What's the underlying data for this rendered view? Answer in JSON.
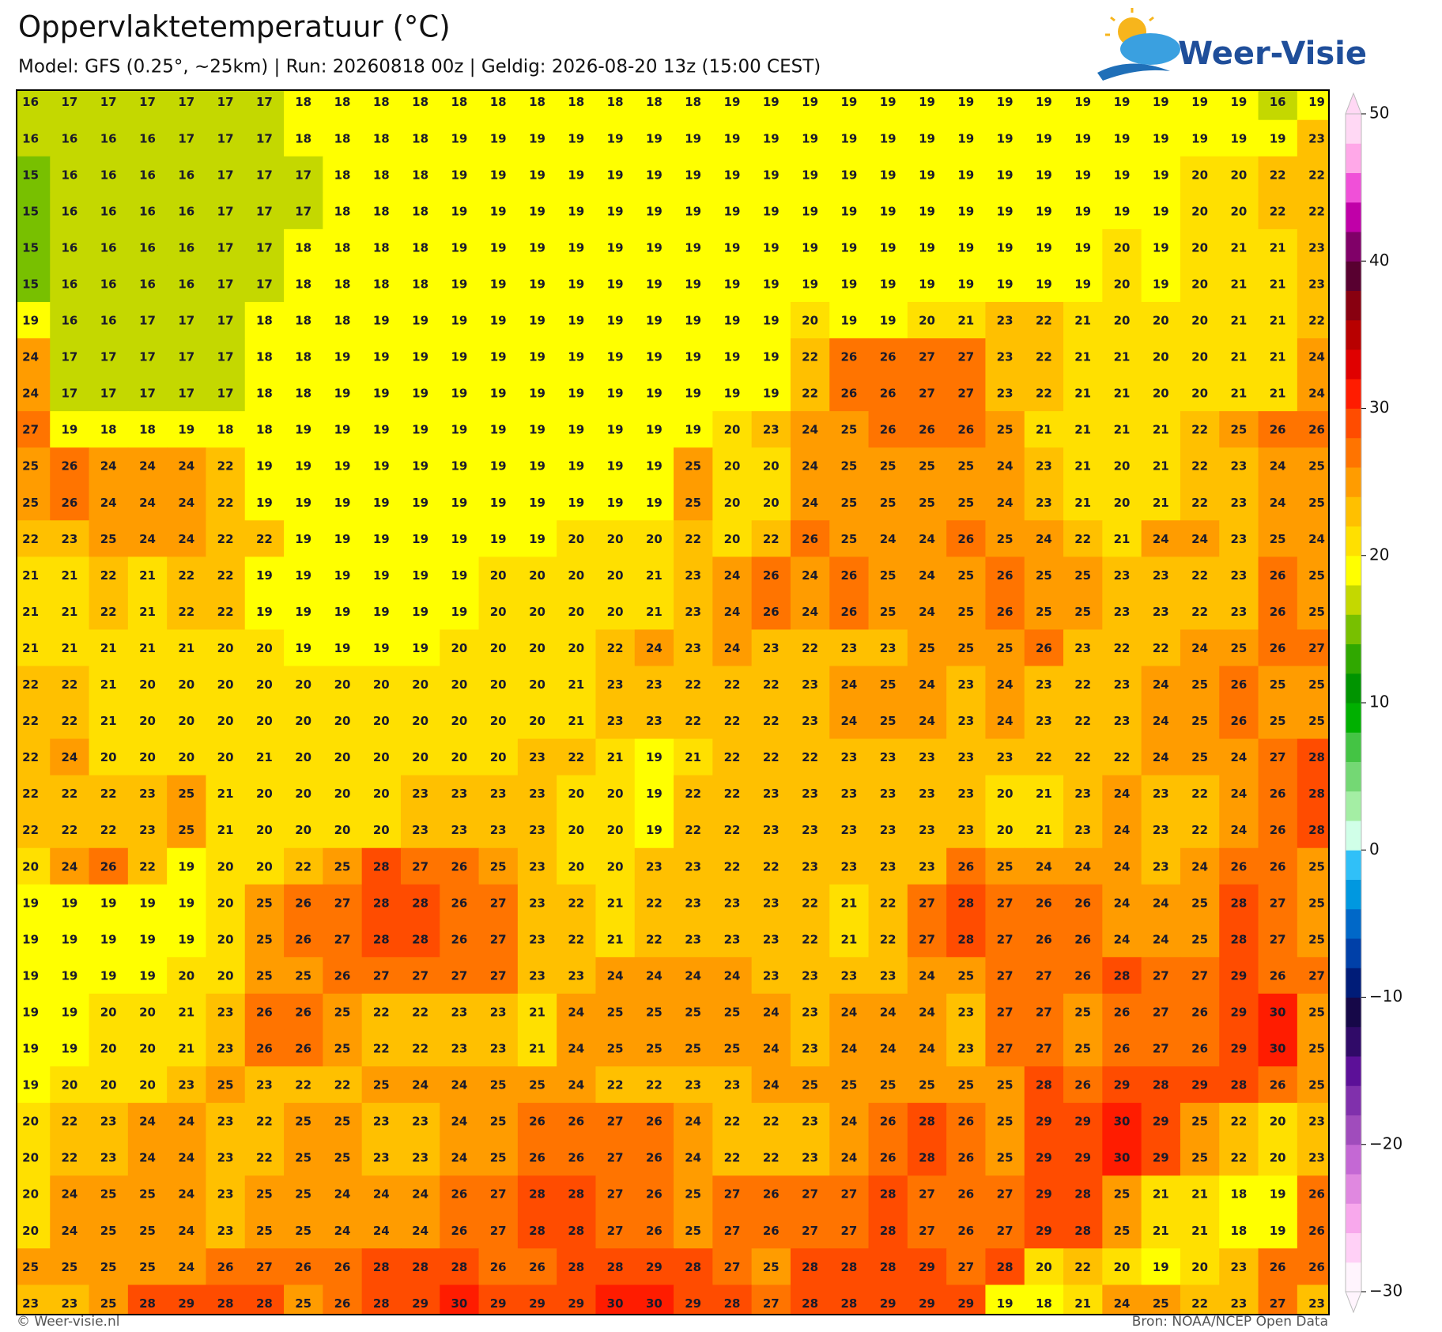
{
  "header": {
    "title": "Oppervlaktetemperatuur (°C)",
    "subtitle": "Model: GFS (0.25°, ~25km)  |  Run: 20260818 00z  |  Geldig: 2026-08-20 13z (15:00 CEST)",
    "logo": "Weer-Visie"
  },
  "map": {
    "values": [
      [
        16,
        17,
        17,
        17,
        17,
        17,
        17,
        18,
        18,
        18,
        18,
        18,
        18,
        18,
        18,
        18,
        18,
        18,
        19,
        19,
        19,
        19,
        19,
        19,
        19,
        19,
        19,
        19,
        19,
        19,
        19,
        19,
        16,
        19
      ],
      [
        16,
        16,
        16,
        16,
        17,
        17,
        17,
        18,
        18,
        18,
        18,
        19,
        19,
        19,
        19,
        19,
        19,
        19,
        19,
        19,
        19,
        19,
        19,
        19,
        19,
        19,
        19,
        19,
        19,
        19,
        19,
        19,
        19,
        23
      ],
      [
        15,
        16,
        16,
        16,
        16,
        17,
        17,
        17,
        18,
        18,
        18,
        19,
        19,
        19,
        19,
        19,
        19,
        19,
        19,
        19,
        19,
        19,
        19,
        19,
        19,
        19,
        19,
        19,
        19,
        19,
        20,
        20,
        22,
        22
      ],
      [
        15,
        16,
        16,
        16,
        16,
        17,
        17,
        17,
        18,
        18,
        18,
        19,
        19,
        19,
        19,
        19,
        19,
        19,
        19,
        19,
        19,
        19,
        19,
        19,
        19,
        19,
        19,
        19,
        19,
        19,
        20,
        20,
        22,
        22
      ],
      [
        15,
        16,
        16,
        16,
        16,
        17,
        17,
        18,
        18,
        18,
        18,
        19,
        19,
        19,
        19,
        19,
        19,
        19,
        19,
        19,
        19,
        19,
        19,
        19,
        19,
        19,
        19,
        19,
        20,
        19,
        20,
        21,
        21,
        23
      ],
      [
        15,
        16,
        16,
        16,
        16,
        17,
        17,
        18,
        18,
        18,
        18,
        19,
        19,
        19,
        19,
        19,
        19,
        19,
        19,
        19,
        19,
        19,
        19,
        19,
        19,
        19,
        19,
        19,
        20,
        19,
        20,
        21,
        21,
        23
      ],
      [
        19,
        16,
        16,
        17,
        17,
        17,
        18,
        18,
        18,
        19,
        19,
        19,
        19,
        19,
        19,
        19,
        19,
        19,
        19,
        19,
        20,
        19,
        19,
        20,
        21,
        23,
        22,
        21,
        20,
        20,
        20,
        21,
        21,
        22
      ],
      [
        24,
        17,
        17,
        17,
        17,
        17,
        18,
        18,
        19,
        19,
        19,
        19,
        19,
        19,
        19,
        19,
        19,
        19,
        19,
        19,
        22,
        26,
        26,
        27,
        27,
        23,
        22,
        21,
        21,
        20,
        20,
        21,
        21,
        24
      ],
      [
        24,
        17,
        17,
        17,
        17,
        17,
        18,
        18,
        19,
        19,
        19,
        19,
        19,
        19,
        19,
        19,
        19,
        19,
        19,
        19,
        22,
        26,
        26,
        27,
        27,
        23,
        22,
        21,
        21,
        20,
        20,
        21,
        21,
        24
      ],
      [
        27,
        19,
        18,
        18,
        19,
        18,
        18,
        19,
        19,
        19,
        19,
        19,
        19,
        19,
        19,
        19,
        19,
        19,
        20,
        23,
        24,
        25,
        26,
        26,
        26,
        25,
        21,
        21,
        21,
        21,
        22,
        25,
        26,
        26
      ],
      [
        25,
        26,
        24,
        24,
        24,
        22,
        19,
        19,
        19,
        19,
        19,
        19,
        19,
        19,
        19,
        19,
        19,
        25,
        20,
        20,
        24,
        25,
        25,
        25,
        25,
        24,
        23,
        21,
        20,
        21,
        22,
        23,
        24,
        25
      ],
      [
        25,
        26,
        24,
        24,
        24,
        22,
        19,
        19,
        19,
        19,
        19,
        19,
        19,
        19,
        19,
        19,
        19,
        25,
        20,
        20,
        24,
        25,
        25,
        25,
        25,
        24,
        23,
        21,
        20,
        21,
        22,
        23,
        24,
        25
      ],
      [
        22,
        23,
        25,
        24,
        24,
        22,
        22,
        19,
        19,
        19,
        19,
        19,
        19,
        19,
        20,
        20,
        20,
        22,
        20,
        22,
        26,
        25,
        24,
        24,
        26,
        25,
        24,
        22,
        21,
        24,
        24,
        23,
        25,
        24
      ],
      [
        21,
        21,
        22,
        21,
        22,
        22,
        19,
        19,
        19,
        19,
        19,
        19,
        20,
        20,
        20,
        20,
        21,
        23,
        24,
        26,
        24,
        26,
        25,
        24,
        25,
        26,
        25,
        25,
        23,
        23,
        22,
        23,
        26,
        25
      ],
      [
        21,
        21,
        22,
        21,
        22,
        22,
        19,
        19,
        19,
        19,
        19,
        19,
        20,
        20,
        20,
        20,
        21,
        23,
        24,
        26,
        24,
        26,
        25,
        24,
        25,
        26,
        25,
        25,
        23,
        23,
        22,
        23,
        26,
        25
      ],
      [
        21,
        21,
        21,
        21,
        21,
        20,
        20,
        19,
        19,
        19,
        19,
        20,
        20,
        20,
        20,
        22,
        24,
        23,
        24,
        23,
        22,
        23,
        23,
        25,
        25,
        25,
        26,
        23,
        22,
        22,
        24,
        25,
        26,
        27
      ],
      [
        22,
        22,
        21,
        20,
        20,
        20,
        20,
        20,
        20,
        20,
        20,
        20,
        20,
        20,
        21,
        23,
        23,
        22,
        22,
        22,
        23,
        24,
        25,
        24,
        23,
        24,
        23,
        22,
        23,
        24,
        25,
        26,
        25,
        25
      ],
      [
        22,
        22,
        21,
        20,
        20,
        20,
        20,
        20,
        20,
        20,
        20,
        20,
        20,
        20,
        21,
        23,
        23,
        22,
        22,
        22,
        23,
        24,
        25,
        24,
        23,
        24,
        23,
        22,
        23,
        24,
        25,
        26,
        25,
        25
      ],
      [
        22,
        24,
        20,
        20,
        20,
        20,
        21,
        20,
        20,
        20,
        20,
        20,
        20,
        23,
        22,
        21,
        19,
        21,
        22,
        22,
        22,
        23,
        23,
        23,
        23,
        23,
        22,
        22,
        22,
        24,
        25,
        24,
        27,
        28
      ],
      [
        22,
        22,
        22,
        23,
        25,
        21,
        20,
        20,
        20,
        20,
        23,
        23,
        23,
        23,
        20,
        20,
        19,
        22,
        22,
        23,
        23,
        23,
        23,
        23,
        23,
        20,
        21,
        23,
        24,
        23,
        22,
        24,
        26,
        28
      ],
      [
        22,
        22,
        22,
        23,
        25,
        21,
        20,
        20,
        20,
        20,
        23,
        23,
        23,
        23,
        20,
        20,
        19,
        22,
        22,
        23,
        23,
        23,
        23,
        23,
        23,
        20,
        21,
        23,
        24,
        23,
        22,
        24,
        26,
        28
      ],
      [
        20,
        24,
        26,
        22,
        19,
        20,
        20,
        22,
        25,
        28,
        27,
        26,
        25,
        23,
        20,
        20,
        23,
        23,
        22,
        22,
        23,
        23,
        23,
        23,
        26,
        25,
        24,
        24,
        24,
        23,
        24,
        26,
        26,
        25
      ],
      [
        19,
        19,
        19,
        19,
        19,
        20,
        25,
        26,
        27,
        28,
        28,
        26,
        27,
        23,
        22,
        21,
        22,
        23,
        23,
        23,
        22,
        21,
        22,
        27,
        28,
        27,
        26,
        26,
        24,
        24,
        25,
        28,
        27,
        25
      ],
      [
        19,
        19,
        19,
        19,
        19,
        20,
        25,
        26,
        27,
        28,
        28,
        26,
        27,
        23,
        22,
        21,
        22,
        23,
        23,
        23,
        22,
        21,
        22,
        27,
        28,
        27,
        26,
        26,
        24,
        24,
        25,
        28,
        27,
        25
      ],
      [
        19,
        19,
        19,
        19,
        20,
        20,
        25,
        25,
        26,
        27,
        27,
        27,
        27,
        23,
        23,
        24,
        24,
        24,
        24,
        23,
        23,
        23,
        23,
        24,
        25,
        27,
        27,
        26,
        28,
        27,
        27,
        29,
        26,
        27
      ],
      [
        19,
        19,
        20,
        20,
        21,
        23,
        26,
        26,
        25,
        22,
        22,
        23,
        23,
        21,
        24,
        25,
        25,
        25,
        25,
        24,
        23,
        24,
        24,
        24,
        23,
        27,
        27,
        25,
        26,
        27,
        26,
        29,
        30,
        25
      ],
      [
        19,
        19,
        20,
        20,
        21,
        23,
        26,
        26,
        25,
        22,
        22,
        23,
        23,
        21,
        24,
        25,
        25,
        25,
        25,
        24,
        23,
        24,
        24,
        24,
        23,
        27,
        27,
        25,
        26,
        27,
        26,
        29,
        30,
        25
      ],
      [
        19,
        20,
        20,
        20,
        23,
        25,
        23,
        22,
        22,
        25,
        24,
        24,
        25,
        25,
        24,
        22,
        22,
        23,
        23,
        24,
        25,
        25,
        25,
        25,
        25,
        25,
        28,
        26,
        29,
        28,
        29,
        28,
        26,
        25
      ],
      [
        20,
        22,
        23,
        24,
        24,
        23,
        22,
        25,
        25,
        23,
        23,
        24,
        25,
        26,
        26,
        27,
        26,
        24,
        22,
        22,
        23,
        24,
        26,
        28,
        26,
        25,
        29,
        29,
        30,
        29,
        25,
        22,
        20,
        23
      ],
      [
        20,
        22,
        23,
        24,
        24,
        23,
        22,
        25,
        25,
        23,
        23,
        24,
        25,
        26,
        26,
        27,
        26,
        24,
        22,
        22,
        23,
        24,
        26,
        28,
        26,
        25,
        29,
        29,
        30,
        29,
        25,
        22,
        20,
        23
      ],
      [
        20,
        24,
        25,
        25,
        24,
        23,
        25,
        25,
        24,
        24,
        24,
        26,
        27,
        28,
        28,
        27,
        26,
        25,
        27,
        26,
        27,
        27,
        28,
        27,
        26,
        27,
        29,
        28,
        25,
        21,
        21,
        18,
        19,
        26
      ],
      [
        20,
        24,
        25,
        25,
        24,
        23,
        25,
        25,
        24,
        24,
        24,
        26,
        27,
        28,
        28,
        27,
        26,
        25,
        27,
        26,
        27,
        27,
        28,
        27,
        26,
        27,
        29,
        28,
        25,
        21,
        21,
        18,
        19,
        26
      ],
      [
        25,
        25,
        25,
        25,
        24,
        26,
        27,
        26,
        26,
        28,
        28,
        28,
        26,
        26,
        28,
        28,
        29,
        28,
        27,
        25,
        28,
        28,
        28,
        29,
        27,
        28,
        20,
        22,
        20,
        19,
        20,
        23,
        26,
        26
      ],
      [
        23,
        23,
        25,
        28,
        29,
        28,
        28,
        25,
        26,
        28,
        29,
        30,
        29,
        29,
        29,
        30,
        30,
        29,
        28,
        27,
        28,
        28,
        29,
        29,
        29,
        19,
        18,
        21,
        24,
        25,
        22,
        23,
        27,
        23
      ]
    ],
    "colorbar": {
      "lim": [
        -30,
        50
      ],
      "ticks": [
        50,
        40,
        30,
        20,
        10,
        0,
        {
          "value": -10,
          "label": "−10"
        },
        {
          "value": -20,
          "label": "−20"
        },
        {
          "value": -30,
          "label": "−30"
        }
      ],
      "colors": [
        "#fff4fd",
        "#ffd0f6",
        "#f8a8ec",
        "#e088e0",
        "#c468d4",
        "#a04cbc",
        "#8030ac",
        "#5c1098",
        "#300a68",
        "#160848",
        "#001c78",
        "#0040a8",
        "#0068c8",
        "#0098e0",
        "#30c0f8",
        "#d0ffe8",
        "#a4eea4",
        "#74d874",
        "#44c444",
        "#00b000",
        "#009400",
        "#30a800",
        "#78c000",
        "#c4d800",
        "#ffff00",
        "#ffe000",
        "#ffc000",
        "#ff9c00",
        "#ff7400",
        "#ff4c00",
        "#ff1c00",
        "#e00000",
        "#b80000",
        "#880010",
        "#580030",
        "#800068",
        "#c000a8",
        "#f050d8",
        "#ffa8e8",
        "#ffd8f4"
      ]
    }
  },
  "footer": {
    "left": "© Weer-visie.nl",
    "right": "Bron: NOAA/NCEP Open Data"
  }
}
